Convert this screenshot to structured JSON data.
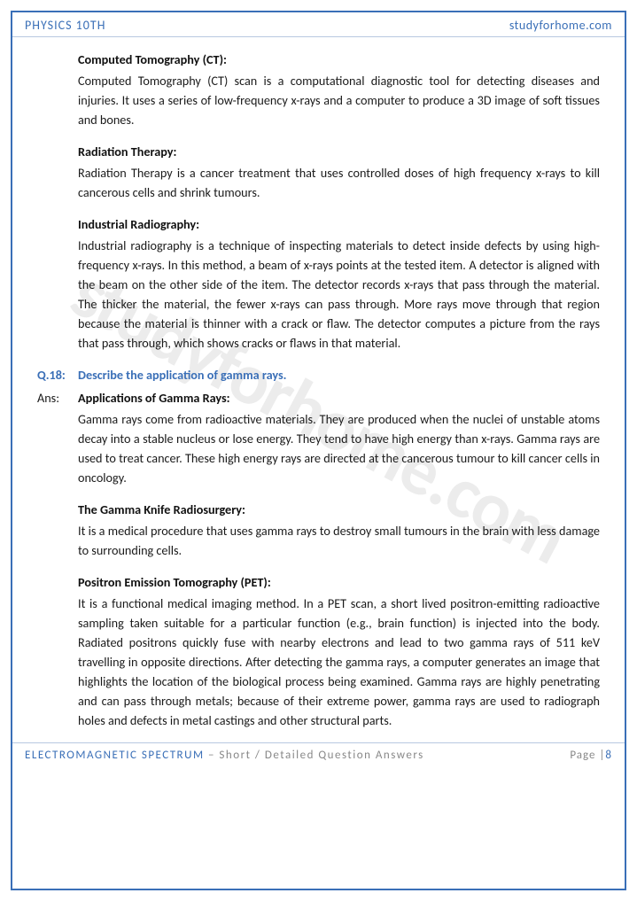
{
  "header": {
    "left": "PHYSICS 10TH",
    "right": "studyforhome.com"
  },
  "watermark": "studyforhome.com",
  "sections": [
    {
      "heading": "Computed Tomography (CT):",
      "body": "Computed Tomography (CT) scan is a computational diagnostic tool for detecting diseases and injuries. It uses a series of low-frequency x-rays and a computer to produce a 3D image of soft tissues and bones."
    },
    {
      "heading": "Radiation Therapy:",
      "body": "Radiation Therapy is a cancer treatment that uses controlled doses of high frequency x-rays to kill cancerous cells and shrink tumours."
    },
    {
      "heading": "Industrial Radiography:",
      "body": "Industrial radiography is a technique of inspecting materials to detect inside defects by using high-frequency x-rays. In this method, a beam of x-rays points at the tested item. A detector is aligned with the beam on the other side of the item. The detector records x-rays that pass through the material. The thicker the material, the fewer x-rays can pass through. More rays move through that region because the material is thinner with a crack or flaw. The detector computes a picture from the rays that pass through, which shows cracks or flaws in that material."
    }
  ],
  "question": {
    "label": "Q.18:",
    "text": "Describe the application of gamma rays."
  },
  "answer": {
    "label": "Ans:",
    "sections": [
      {
        "heading": "Applications of Gamma Rays:",
        "body": "Gamma rays come from radioactive materials. They are produced when the nuclei of unstable atoms decay into a stable nucleus or lose energy. They tend to have high energy than x-rays. Gamma rays are used to treat cancer. These high energy rays are directed at the cancerous tumour to kill cancer cells in oncology."
      },
      {
        "heading": "The Gamma Knife Radiosurgery:",
        "body": "It is a medical procedure that uses gamma rays to destroy small tumours in the brain with less damage to surrounding cells."
      },
      {
        "heading": "Positron Emission Tomography (PET):",
        "body": "It is a functional medical imaging method. In a PET scan, a short lived positron-emitting radioactive sampling taken suitable for a particular function (e.g., brain function) is injected into the body. Radiated positrons quickly fuse with nearby electrons and lead to two gamma rays of 511 keV travelling in opposite directions. After detecting the gamma rays, a computer generates an image that highlights the location of the biological process being examined. Gamma rays are highly penetrating and can pass through metals; because of their extreme power, gamma rays are used to radiograph holes and defects in metal castings and other structural parts."
      }
    ]
  },
  "footer": {
    "topic": "ELECTROMAGNETIC SPECTRUM",
    "sub": " – Short / Detailed Question Answers",
    "page_label": "Page |",
    "page_num": "8"
  },
  "colors": {
    "accent": "#3a6fb7",
    "text": "#1a1a1a",
    "muted": "#888888",
    "border_light": "#b8c9e0",
    "watermark": "rgba(120,120,120,0.14)"
  }
}
